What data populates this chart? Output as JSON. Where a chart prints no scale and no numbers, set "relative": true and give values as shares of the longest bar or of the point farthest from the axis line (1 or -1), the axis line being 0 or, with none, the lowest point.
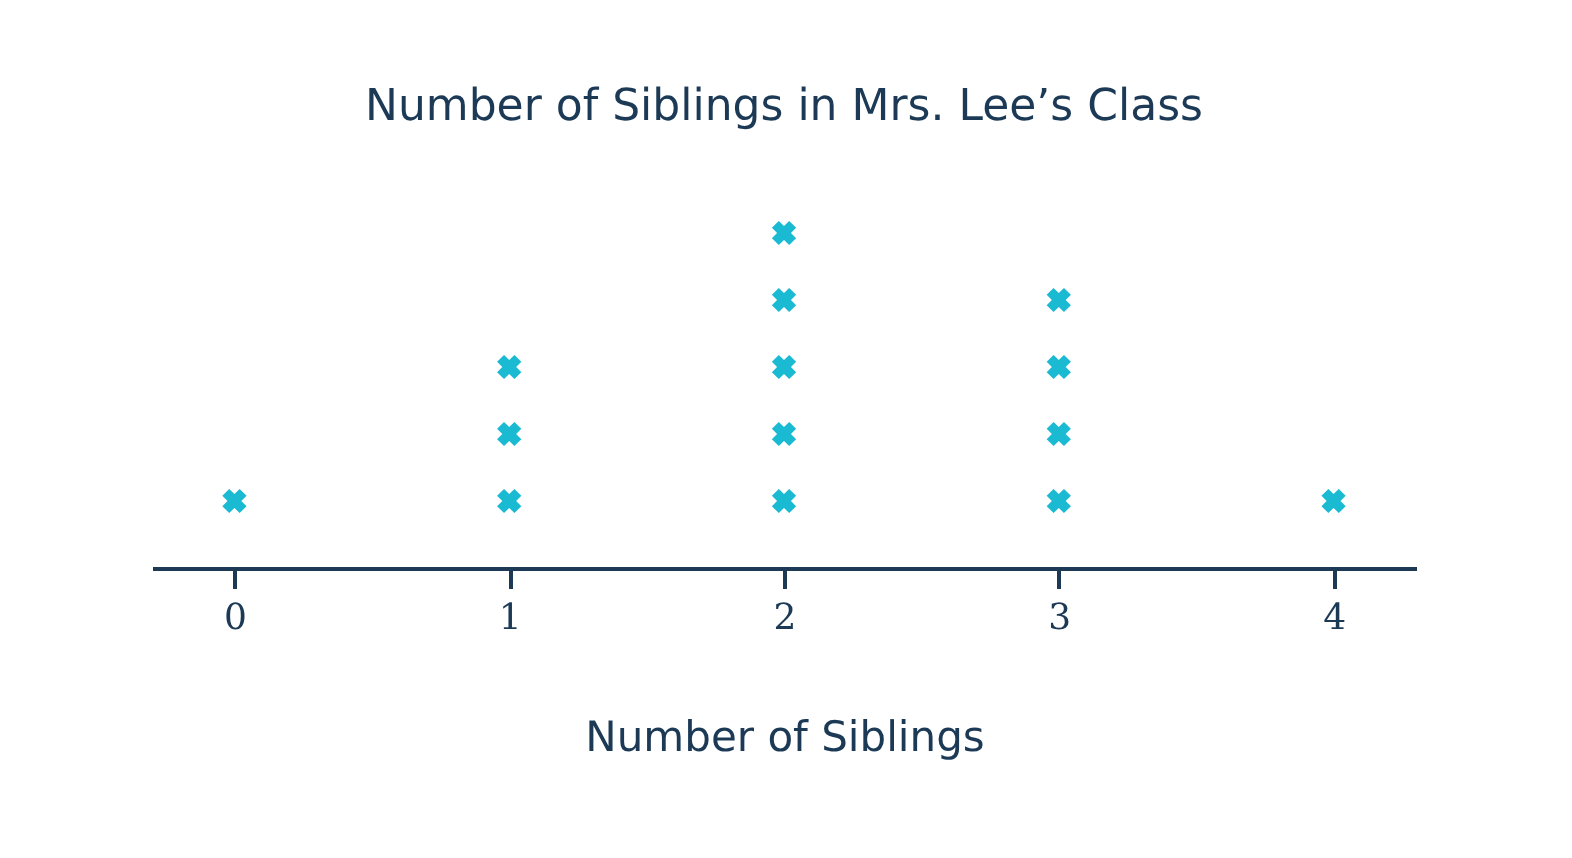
{
  "chart_data": {
    "type": "scatter",
    "title": "Number of Siblings in Mrs. Lee’s Class",
    "xlabel": "Number of Siblings",
    "x": [
      0,
      1,
      1,
      1,
      2,
      2,
      2,
      2,
      2,
      3,
      3,
      3,
      3,
      4
    ],
    "values": [
      0.2,
      0.2,
      0.4,
      0.6,
      0.2,
      0.4,
      0.6,
      0.8,
      1,
      0.2,
      0.4,
      0.6,
      0.8,
      0.2
    ],
    "relative": true,
    "color": "#1bbad3",
    "marker": "cross",
    "xlim": [
      -0.3,
      4.3
    ],
    "xticks": [
      0,
      1,
      2,
      3,
      4
    ],
    "tick_labels": "x",
    "grid": false
  }
}
